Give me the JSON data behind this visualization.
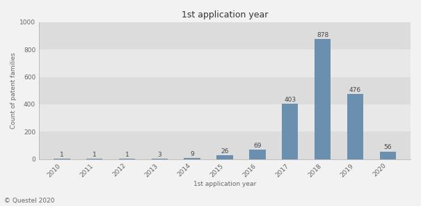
{
  "title": "1st application year",
  "xlabel": "1st application year",
  "ylabel": "Count of patent families",
  "years": [
    2010,
    2011,
    2012,
    2013,
    2014,
    2015,
    2016,
    2017,
    2018,
    2019,
    2020
  ],
  "values": [
    1,
    1,
    1,
    3,
    9,
    26,
    69,
    403,
    878,
    476,
    56
  ],
  "bar_color": "#6b8faf",
  "fig_bg_color": "#f2f2f2",
  "plot_bg_color": "#e8e8e8",
  "band_colors": [
    "#dcdcdc",
    "#e8e8e8"
  ],
  "ylim": [
    0,
    1000
  ],
  "yticks": [
    0,
    200,
    400,
    600,
    800,
    1000
  ],
  "footer_text": "© Questel 2020",
  "title_fontsize": 9,
  "label_fontsize": 6.5,
  "tick_fontsize": 6.5,
  "footer_fontsize": 6.5,
  "annotation_fontsize": 6.5
}
